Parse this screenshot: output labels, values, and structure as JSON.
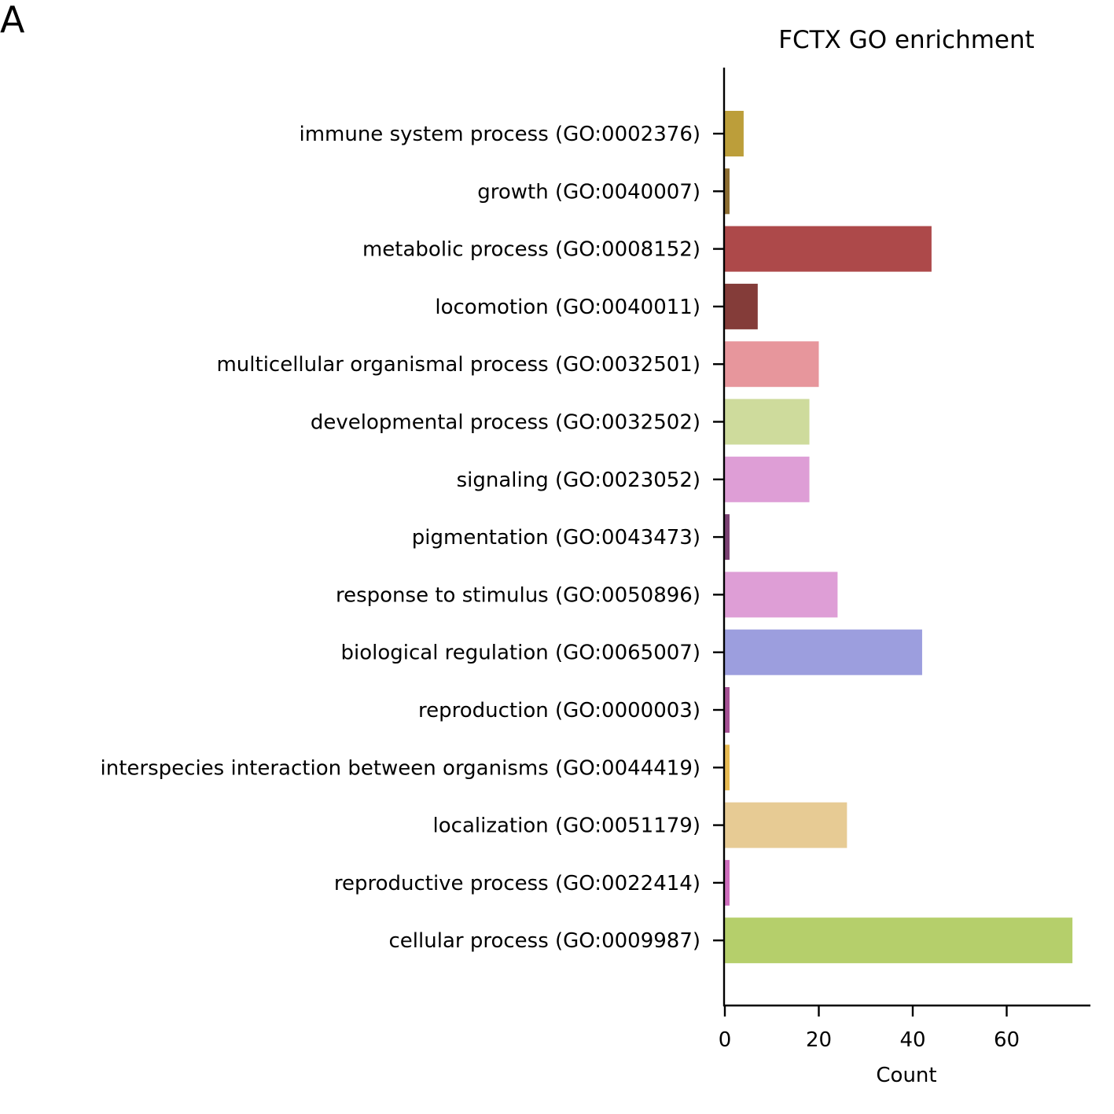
{
  "panel_label": "A",
  "chart_data": {
    "type": "bar",
    "orientation": "horizontal",
    "title": "FCTX GO enrichment",
    "xlabel": "Count",
    "ylabel": "",
    "xlim": [
      0,
      78
    ],
    "xticks": [
      0,
      20,
      40,
      60
    ],
    "grid": false,
    "categories": [
      "immune system process (GO:0002376)",
      "growth (GO:0040007)",
      "metabolic process (GO:0008152)",
      "locomotion (GO:0040011)",
      "multicellular organismal process (GO:0032501)",
      "developmental process (GO:0032502)",
      "signaling (GO:0023052)",
      "pigmentation (GO:0043473)",
      "response to stimulus (GO:0050896)",
      "biological regulation (GO:0065007)",
      "reproduction (GO:0000003)",
      "interspecies interaction between organisms (GO:0044419)",
      "localization (GO:0051179)",
      "reproductive process (GO:0022414)",
      "cellular process (GO:0009987)"
    ],
    "values": [
      4,
      1,
      44,
      7,
      20,
      18,
      18,
      1,
      24,
      42,
      1,
      1,
      26,
      1,
      74
    ],
    "colors": [
      "#bc9e3a",
      "#8c6d31",
      "#ad494a",
      "#843c39",
      "#e7969c",
      "#cedb9c",
      "#de9ed6",
      "#7b4173",
      "#de9ed6",
      "#9c9ede",
      "#a55194",
      "#e7ba52",
      "#e7cb94",
      "#ce6dbd",
      "#b5cf6b"
    ]
  }
}
